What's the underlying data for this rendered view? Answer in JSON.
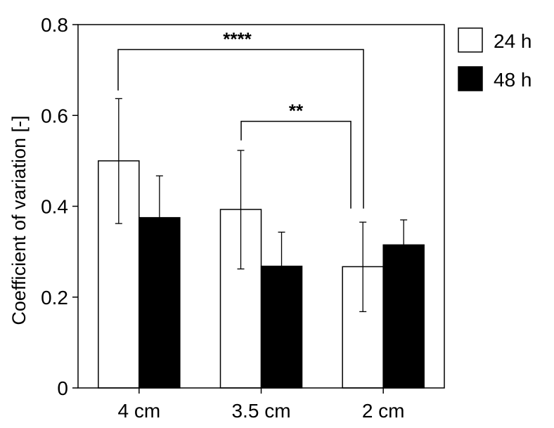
{
  "chart_data": {
    "type": "bar",
    "title": "",
    "xlabel": "",
    "ylabel": "Coefficient of variation [-]",
    "ylim": [
      0,
      0.8
    ],
    "yticks": [
      0,
      0.2,
      0.4,
      0.6,
      0.8
    ],
    "ytick_labels": [
      "0",
      "0.2",
      "0.4",
      "0.6",
      "0.8"
    ],
    "categories": [
      "4 cm",
      "3.5 cm",
      "2 cm"
    ],
    "series": [
      {
        "name": "24 h",
        "color": "#ffffff",
        "values": [
          0.5,
          0.393,
          0.267
        ],
        "error_upper": [
          0.637,
          0.523,
          0.365
        ],
        "error_lower": [
          0.362,
          0.262,
          0.168
        ]
      },
      {
        "name": "48 h",
        "color": "#000000",
        "values": [
          0.375,
          0.268,
          0.315
        ],
        "error_upper": [
          0.467,
          0.343,
          0.37
        ],
        "error_lower": [
          0.375,
          0.268,
          0.315
        ]
      }
    ],
    "significance": [
      {
        "label": "****",
        "from_category": 0,
        "to_category": 2,
        "height": 0.745,
        "left_drop": 0.655,
        "right_drop": 0.395
      },
      {
        "label": "**",
        "from_category": 1,
        "to_category": 2,
        "height": 0.587,
        "left_drop": 0.545,
        "right_drop": 0.395
      }
    ],
    "legend": {
      "position": "top-right, outside plot",
      "items": [
        "24 h",
        "48 h"
      ]
    },
    "grid": false
  }
}
